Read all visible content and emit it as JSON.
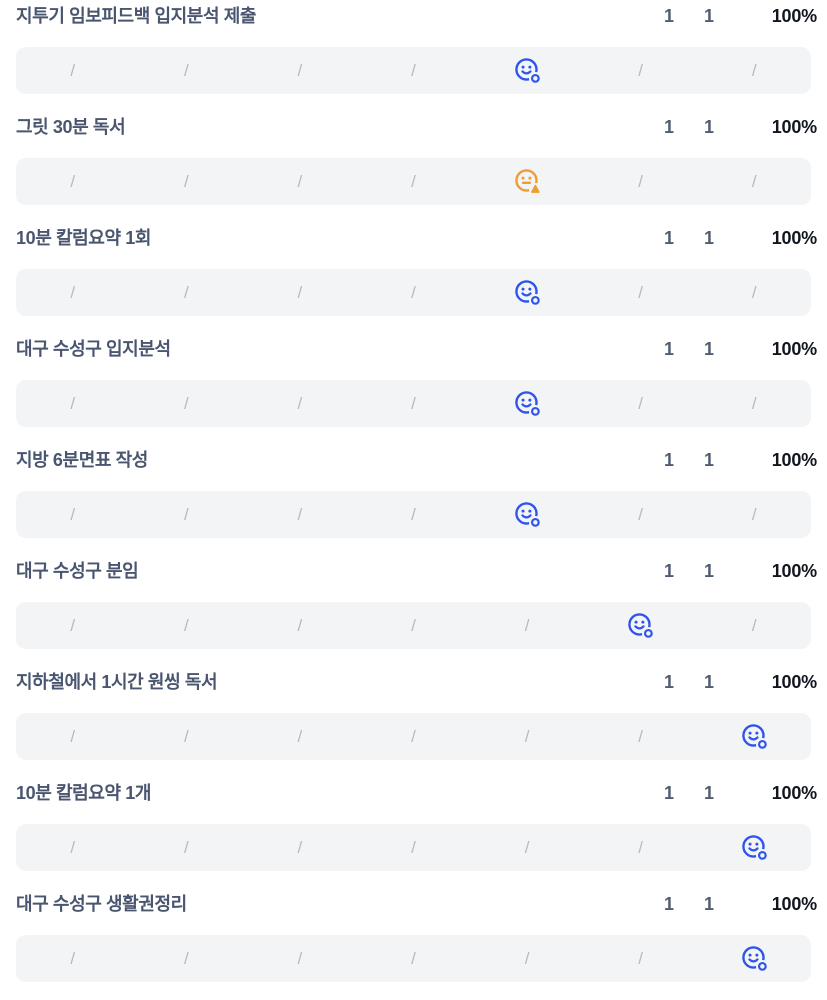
{
  "colors": {
    "title": "#4a5670",
    "count": "#515c70",
    "percent": "#12161f",
    "bar-bg": "#f3f4f6",
    "slash": "#b4bac6",
    "blue": "#2f54eb",
    "orange": "#ef9c30"
  },
  "slash_char": "/",
  "columns_per_row": 7,
  "icons": {
    "good": "smiley-face-check-icon",
    "soso": "neutral-face-warning-icon",
    "empty": "slash-placeholder"
  },
  "habits": [
    {
      "title": "지투기 임보피드백 입지분석 제출",
      "done": "1",
      "target": "1",
      "rate": "100%",
      "mood": "good",
      "mood_color": "blue",
      "record_column": 5
    },
    {
      "title": "그릿 30분 독서",
      "done": "1",
      "target": "1",
      "rate": "100%",
      "mood": "soso",
      "mood_color": "orange",
      "record_column": 5
    },
    {
      "title": "10분 칼럼요약 1회",
      "done": "1",
      "target": "1",
      "rate": "100%",
      "mood": "good",
      "mood_color": "blue",
      "record_column": 5
    },
    {
      "title": "대구 수성구 입지분석",
      "done": "1",
      "target": "1",
      "rate": "100%",
      "mood": "good",
      "mood_color": "blue",
      "record_column": 5
    },
    {
      "title": "지방 6분면표 작성",
      "done": "1",
      "target": "1",
      "rate": "100%",
      "mood": "good",
      "mood_color": "blue",
      "record_column": 5
    },
    {
      "title": "대구 수성구 분임",
      "done": "1",
      "target": "1",
      "rate": "100%",
      "mood": "good",
      "mood_color": "blue",
      "record_column": 6
    },
    {
      "title": "지하철에서 1시간 원씽 독서",
      "done": "1",
      "target": "1",
      "rate": "100%",
      "mood": "good",
      "mood_color": "blue",
      "record_column": 7
    },
    {
      "title": "10분 칼럼요약 1개",
      "done": "1",
      "target": "1",
      "rate": "100%",
      "mood": "good",
      "mood_color": "blue",
      "record_column": 7
    },
    {
      "title": "대구 수성구 생활권정리",
      "done": "1",
      "target": "1",
      "rate": "100%",
      "mood": "good",
      "mood_color": "blue",
      "record_column": 7
    }
  ]
}
